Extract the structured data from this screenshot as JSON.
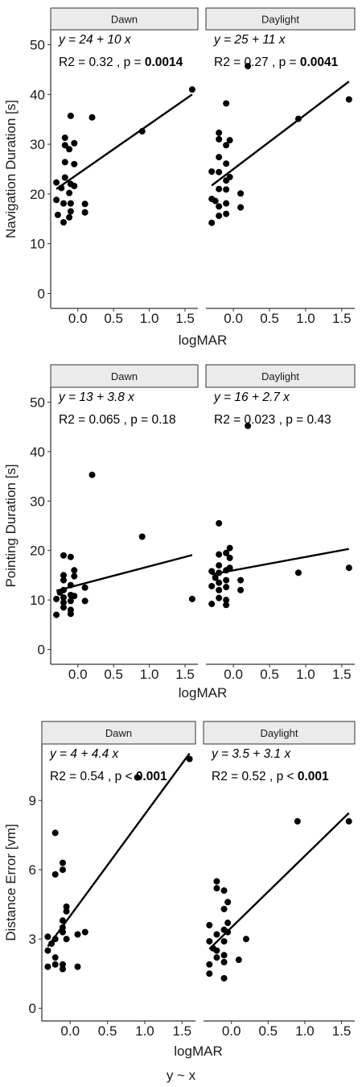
{
  "footer": {
    "caption": "y ~ x"
  },
  "chart_data": [
    {
      "type": "scatter",
      "ylabel": "Navigation Duration [s]",
      "xlabel": "logMAR",
      "ylim": [
        -3,
        53
      ],
      "xlim": [
        -0.38,
        1.68
      ],
      "yticks": [
        0,
        10,
        20,
        30,
        40,
        50
      ],
      "ytick_labels": [
        "0",
        "10",
        "20",
        "30",
        "40",
        "50"
      ],
      "xticks": [
        0,
        0.5,
        1,
        1.5
      ],
      "xtick_labels": [
        "0.0",
        "0.5",
        "1.0",
        "1.5"
      ],
      "grid": false,
      "panels": [
        {
          "strip": "Dawn",
          "equation": "y = 24 + 10 x",
          "stats_r2": "R2 = 0.32 ,",
          "stats_p": "p =",
          "stats_p_value": "0.0014",
          "fit": {
            "intercept": 24,
            "slope": 10,
            "x_range": [
              -0.3,
              1.6
            ]
          },
          "points": [
            [
              -0.3,
              22.3
            ],
            [
              -0.3,
              18.8
            ],
            [
              -0.28,
              15.8
            ],
            [
              -0.23,
              21.2
            ],
            [
              -0.2,
              18.1
            ],
            [
              -0.2,
              14.3
            ],
            [
              -0.18,
              31.3
            ],
            [
              -0.18,
              29.8
            ],
            [
              -0.18,
              26.4
            ],
            [
              -0.18,
              23.3
            ],
            [
              -0.12,
              29.0
            ],
            [
              -0.12,
              20.2
            ],
            [
              -0.12,
              15.3
            ],
            [
              -0.1,
              35.7
            ],
            [
              -0.1,
              22.0
            ],
            [
              -0.1,
              18.1
            ],
            [
              -0.1,
              16.5
            ],
            [
              -0.05,
              30.2
            ],
            [
              -0.05,
              26.0
            ],
            [
              -0.05,
              21.6
            ],
            [
              0.1,
              18.0
            ],
            [
              0.1,
              16.3
            ],
            [
              0.2,
              35.4
            ],
            [
              0.9,
              32.6
            ],
            [
              1.6,
              41.0
            ]
          ]
        },
        {
          "strip": "Daylight",
          "equation": "y = 25 + 11 x",
          "stats_r2": "R2 = 0.27 ,",
          "stats_p": "p =",
          "stats_p_value": "0.0041",
          "fit": {
            "intercept": 25,
            "slope": 11,
            "x_range": [
              -0.3,
              1.6
            ]
          },
          "points": [
            [
              -0.3,
              24.5
            ],
            [
              -0.3,
              19.0
            ],
            [
              -0.3,
              14.2
            ],
            [
              -0.25,
              18.6
            ],
            [
              -0.2,
              32.3
            ],
            [
              -0.2,
              31.0
            ],
            [
              -0.2,
              27.4
            ],
            [
              -0.2,
              24.4
            ],
            [
              -0.2,
              21.0
            ],
            [
              -0.2,
              17.5
            ],
            [
              -0.2,
              15.6
            ],
            [
              -0.1,
              38.2
            ],
            [
              -0.1,
              29.8
            ],
            [
              -0.1,
              26.1
            ],
            [
              -0.1,
              22.7
            ],
            [
              -0.1,
              20.9
            ],
            [
              -0.1,
              18.1
            ],
            [
              -0.1,
              16.0
            ],
            [
              -0.05,
              30.8
            ],
            [
              -0.05,
              23.4
            ],
            [
              0.1,
              20.1
            ],
            [
              0.1,
              17.3
            ],
            [
              0.2,
              45.7
            ],
            [
              0.9,
              35.1
            ],
            [
              1.6,
              39.0
            ]
          ]
        }
      ]
    },
    {
      "type": "scatter",
      "ylabel": "Pointing Duration [s]",
      "xlabel": "logMAR",
      "ylim": [
        -3,
        53
      ],
      "xlim": [
        -0.38,
        1.68
      ],
      "yticks": [
        0,
        10,
        20,
        30,
        40,
        50
      ],
      "ytick_labels": [
        "0",
        "10",
        "20",
        "30",
        "40",
        "50"
      ],
      "xticks": [
        0,
        0.5,
        1,
        1.5
      ],
      "xtick_labels": [
        "0.0",
        "0.5",
        "1.0",
        "1.5"
      ],
      "grid": false,
      "panels": [
        {
          "strip": "Dawn",
          "equation": "y = 13 + 3.8 x",
          "stats_r2": "R2 = 0.065 ,",
          "stats_p": "p = 0.18",
          "stats_p_value": "",
          "fit": {
            "intercept": 13,
            "slope": 3.8,
            "x_range": [
              -0.3,
              1.6
            ]
          },
          "points": [
            [
              -0.3,
              10.2
            ],
            [
              -0.3,
              7.0
            ],
            [
              -0.25,
              11.5
            ],
            [
              -0.2,
              19.0
            ],
            [
              -0.2,
              15.0
            ],
            [
              -0.2,
              14.0
            ],
            [
              -0.2,
              12.0
            ],
            [
              -0.2,
              10.5
            ],
            [
              -0.2,
              9.5
            ],
            [
              -0.2,
              8.5
            ],
            [
              -0.1,
              18.7
            ],
            [
              -0.1,
              13.0
            ],
            [
              -0.1,
              11.0
            ],
            [
              -0.1,
              9.8
            ],
            [
              -0.1,
              8.0
            ],
            [
              -0.1,
              7.2
            ],
            [
              -0.05,
              16.0
            ],
            [
              -0.05,
              14.8
            ],
            [
              -0.05,
              10.8
            ],
            [
              0.1,
              12.5
            ],
            [
              0.1,
              9.8
            ],
            [
              0.2,
              35.3
            ],
            [
              0.9,
              22.8
            ],
            [
              1.6,
              10.2
            ]
          ]
        },
        {
          "strip": "Daylight",
          "equation": "y = 16 + 2.7 x",
          "stats_r2": "R2 = 0.023 ,",
          "stats_p": "p = 0.43",
          "stats_p_value": "",
          "fit": {
            "intercept": 16,
            "slope": 2.7,
            "x_range": [
              -0.3,
              1.6
            ]
          },
          "points": [
            [
              -0.3,
              15.8
            ],
            [
              -0.3,
              12.8
            ],
            [
              -0.3,
              9.2
            ],
            [
              -0.25,
              14.5
            ],
            [
              -0.2,
              25.5
            ],
            [
              -0.2,
              19.2
            ],
            [
              -0.2,
              17.0
            ],
            [
              -0.2,
              15.5
            ],
            [
              -0.2,
              13.5
            ],
            [
              -0.2,
              12.0
            ],
            [
              -0.2,
              10.4
            ],
            [
              -0.1,
              19.5
            ],
            [
              -0.1,
              16.0
            ],
            [
              -0.1,
              14.0
            ],
            [
              -0.1,
              12.6
            ],
            [
              -0.1,
              10.0
            ],
            [
              -0.1,
              9.0
            ],
            [
              -0.05,
              20.5
            ],
            [
              -0.05,
              18.5
            ],
            [
              -0.05,
              16.5
            ],
            [
              0.1,
              14.0
            ],
            [
              0.1,
              12.0
            ],
            [
              0.2,
              45.2
            ],
            [
              0.9,
              15.5
            ],
            [
              1.6,
              16.5
            ]
          ]
        }
      ]
    },
    {
      "type": "scatter",
      "ylabel": "Distance Error [vm]",
      "xlabel": "logMAR",
      "ylim": [
        -0.55,
        11.45
      ],
      "xlim": [
        -0.38,
        1.68
      ],
      "yticks": [
        0,
        3,
        6,
        9
      ],
      "ytick_labels": [
        "0",
        "3",
        "6",
        "9"
      ],
      "xticks": [
        0,
        0.5,
        1,
        1.5
      ],
      "xtick_labels": [
        "0.0",
        "0.5",
        "1.0",
        "1.5"
      ],
      "grid": false,
      "panels": [
        {
          "strip": "Dawn",
          "equation": "y = 4 + 4.4 x",
          "stats_r2": "R2 = 0.54 ,",
          "stats_p": "p <",
          "stats_p_value": "0.001",
          "fit": {
            "intercept": 4,
            "slope": 4.4,
            "x_range": [
              -0.3,
              1.6
            ]
          },
          "points": [
            [
              -0.3,
              3.1
            ],
            [
              -0.3,
              2.5
            ],
            [
              -0.3,
              1.8
            ],
            [
              -0.25,
              2.8
            ],
            [
              -0.2,
              7.6
            ],
            [
              -0.2,
              5.8
            ],
            [
              -0.2,
              3.0
            ],
            [
              -0.2,
              2.2
            ],
            [
              -0.2,
              1.9
            ],
            [
              -0.1,
              6.3
            ],
            [
              -0.1,
              6.0
            ],
            [
              -0.1,
              3.8
            ],
            [
              -0.1,
              3.5
            ],
            [
              -0.1,
              3.3
            ],
            [
              -0.1,
              1.9
            ],
            [
              -0.1,
              1.7
            ],
            [
              -0.05,
              4.4
            ],
            [
              -0.05,
              4.2
            ],
            [
              -0.05,
              3.0
            ],
            [
              0.1,
              3.2
            ],
            [
              0.1,
              1.8
            ],
            [
              0.2,
              3.3
            ],
            [
              0.9,
              10.0
            ],
            [
              1.6,
              10.8
            ]
          ]
        },
        {
          "strip": "Daylight",
          "equation": "y = 3.5 + 3.1 x",
          "stats_r2": "R2 = 0.52 ,",
          "stats_p": "p <",
          "stats_p_value": "0.001",
          "fit": {
            "intercept": 3.5,
            "slope": 3.1,
            "x_range": [
              -0.3,
              1.6
            ]
          },
          "points": [
            [
              -0.3,
              3.6
            ],
            [
              -0.3,
              2.9
            ],
            [
              -0.3,
              1.9
            ],
            [
              -0.3,
              1.5
            ],
            [
              -0.25,
              2.6
            ],
            [
              -0.2,
              5.5
            ],
            [
              -0.2,
              5.2
            ],
            [
              -0.2,
              3.2
            ],
            [
              -0.2,
              2.5
            ],
            [
              -0.2,
              2.2
            ],
            [
              -0.1,
              5.1
            ],
            [
              -0.1,
              4.3
            ],
            [
              -0.1,
              3.4
            ],
            [
              -0.1,
              2.9
            ],
            [
              -0.1,
              2.3
            ],
            [
              -0.1,
              2.0
            ],
            [
              -0.1,
              1.3
            ],
            [
              -0.05,
              4.6
            ],
            [
              -0.05,
              3.7
            ],
            [
              -0.05,
              3.3
            ],
            [
              0.1,
              2.1
            ],
            [
              0.2,
              3.0
            ],
            [
              0.9,
              8.1
            ],
            [
              1.6,
              8.1
            ]
          ]
        }
      ]
    }
  ]
}
